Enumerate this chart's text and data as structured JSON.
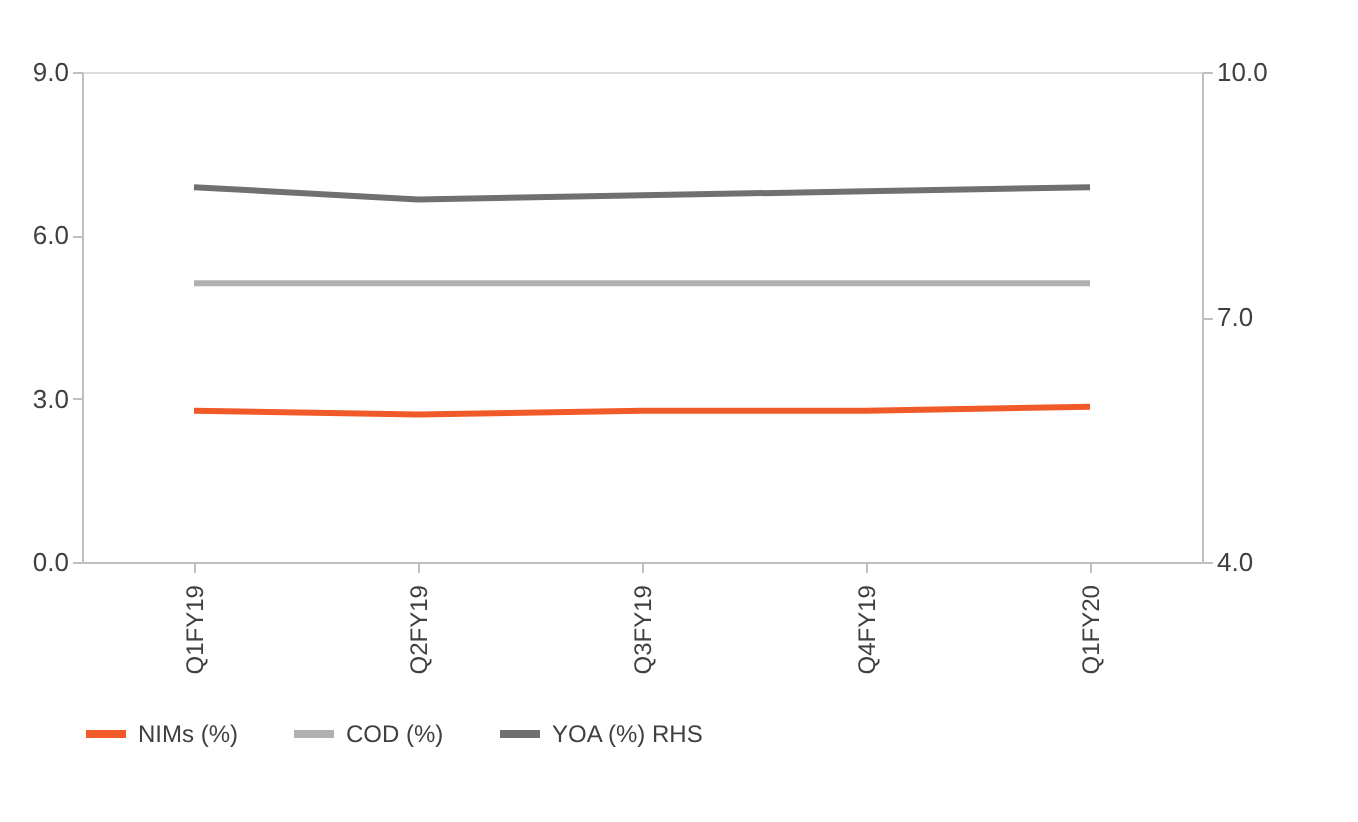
{
  "chart_data": {
    "type": "line",
    "categories": [
      "Q1FY19",
      "Q2FY19",
      "Q3FY19",
      "Q4FY19",
      "Q1FY20"
    ],
    "series": [
      {
        "name": "NIMs (%)",
        "color": "#f05a28",
        "values": [
          2.78,
          2.71,
          2.78,
          2.78,
          2.85
        ]
      },
      {
        "name": "COD (%)",
        "color": "#b0b0b0",
        "values": [
          5.12,
          5.12,
          5.12,
          5.12,
          5.12
        ]
      },
      {
        "name": "YOA (%) RHS",
        "color": "#707070",
        "axis": "y2",
        "values": [
          8.59,
          8.44,
          8.49,
          8.54,
          8.59
        ]
      }
    ],
    "ylim": [
      0,
      9
    ],
    "yticks": [
      {
        "value": 0,
        "label": "0.0"
      },
      {
        "value": 3,
        "label": "3.0"
      },
      {
        "value": 6,
        "label": "6.0"
      },
      {
        "value": 9,
        "label": "9.0"
      }
    ],
    "y2lim": [
      4,
      10
    ],
    "y2ticks": [
      {
        "value": 4,
        "label": "4.0"
      },
      {
        "value": 7,
        "label": "7.0"
      },
      {
        "value": 10,
        "label": "10.0"
      }
    ],
    "grid": false,
    "legend": "bottom",
    "marker": "none",
    "line_style": "solid"
  }
}
